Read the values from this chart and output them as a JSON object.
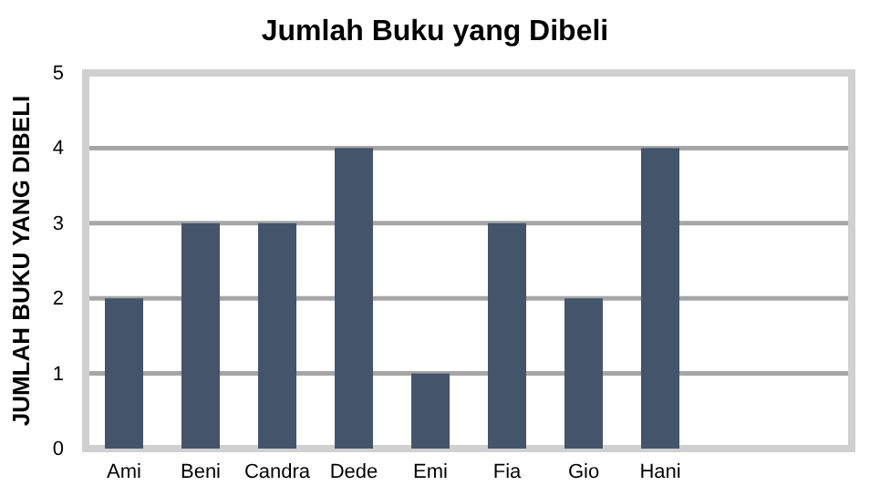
{
  "chart_data": {
    "type": "bar",
    "title": "Jumlah Buku yang Dibeli",
    "ylabel": "JUMLAH BUKU YANG DIBELI",
    "categories": [
      "Ami",
      "Beni",
      "Candra",
      "Dede",
      "Emi",
      "Fia",
      "Gio",
      "Hani",
      null,
      null
    ],
    "values": [
      2,
      3,
      3,
      4,
      1,
      3,
      2,
      4,
      null,
      null
    ],
    "color": "#44546a",
    "ylim": [
      0,
      5
    ],
    "yticks": [
      0,
      1,
      2,
      3,
      4,
      5
    ],
    "grid": "y"
  }
}
